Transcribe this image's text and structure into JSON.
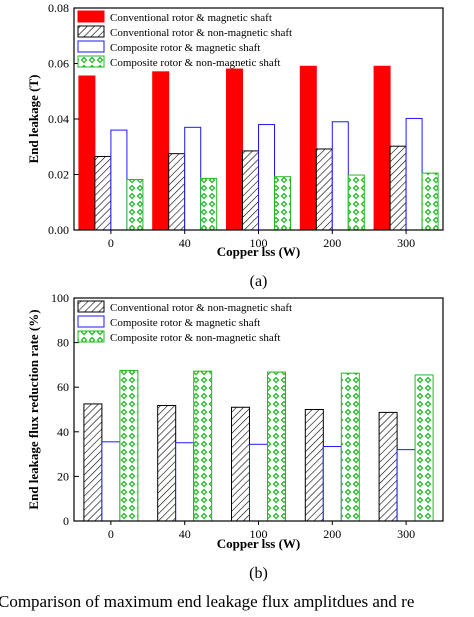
{
  "chart_data": [
    {
      "type": "bar",
      "panel_label": "(a)",
      "xlabel": "Copper lss (W)",
      "ylabel": "End leakage (T)",
      "categories": [
        "0",
        "40",
        "100",
        "200",
        "300"
      ],
      "ylim": [
        0,
        0.08
      ],
      "yticks": [
        "0.00",
        "0.02",
        "0.04",
        "0.06",
        "0.08"
      ],
      "grid": false,
      "legend_position": "top-left",
      "series": [
        {
          "name": "Conventional rotor & magnetic shaft",
          "style": "solid-red",
          "values": [
            0.0555,
            0.057,
            0.058,
            0.059,
            0.059
          ]
        },
        {
          "name": "Conventional rotor & non-magnetic shaft",
          "style": "hatch",
          "values": [
            0.0265,
            0.0275,
            0.0285,
            0.0292,
            0.0302
          ]
        },
        {
          "name": "Composite rotor & magnetic shaft",
          "style": "outline-blue",
          "values": [
            0.036,
            0.037,
            0.038,
            0.039,
            0.0402
          ]
        },
        {
          "name": "Composite rotor & non-magnetic shaft",
          "style": "green-dots",
          "values": [
            0.0182,
            0.0186,
            0.0192,
            0.0198,
            0.0205
          ]
        }
      ]
    },
    {
      "type": "bar",
      "panel_label": "(b)",
      "xlabel": "Copper lss (W)",
      "ylabel": "End leakage flux reduction rate (%)",
      "categories": [
        "0",
        "40",
        "100",
        "200",
        "300"
      ],
      "ylim": [
        0,
        100
      ],
      "yticks": [
        "0",
        "20",
        "40",
        "60",
        "80",
        "100"
      ],
      "grid": false,
      "legend_position": "top-left",
      "series": [
        {
          "name": "Conventional rotor & non-magnetic shaft",
          "style": "hatch",
          "values": [
            52.5,
            51.8,
            51.0,
            50.0,
            48.7
          ]
        },
        {
          "name": "Composite rotor & magnetic shaft",
          "style": "outline-blue",
          "values": [
            35.5,
            35.1,
            34.4,
            33.4,
            32.0
          ]
        },
        {
          "name": "Composite rotor & non-magnetic shaft",
          "style": "green-dots",
          "values": [
            67.5,
            67.2,
            66.8,
            66.3,
            65.5
          ]
        }
      ]
    }
  ],
  "caption": "Comparison of maximum end leakage flux amplitdues and re"
}
